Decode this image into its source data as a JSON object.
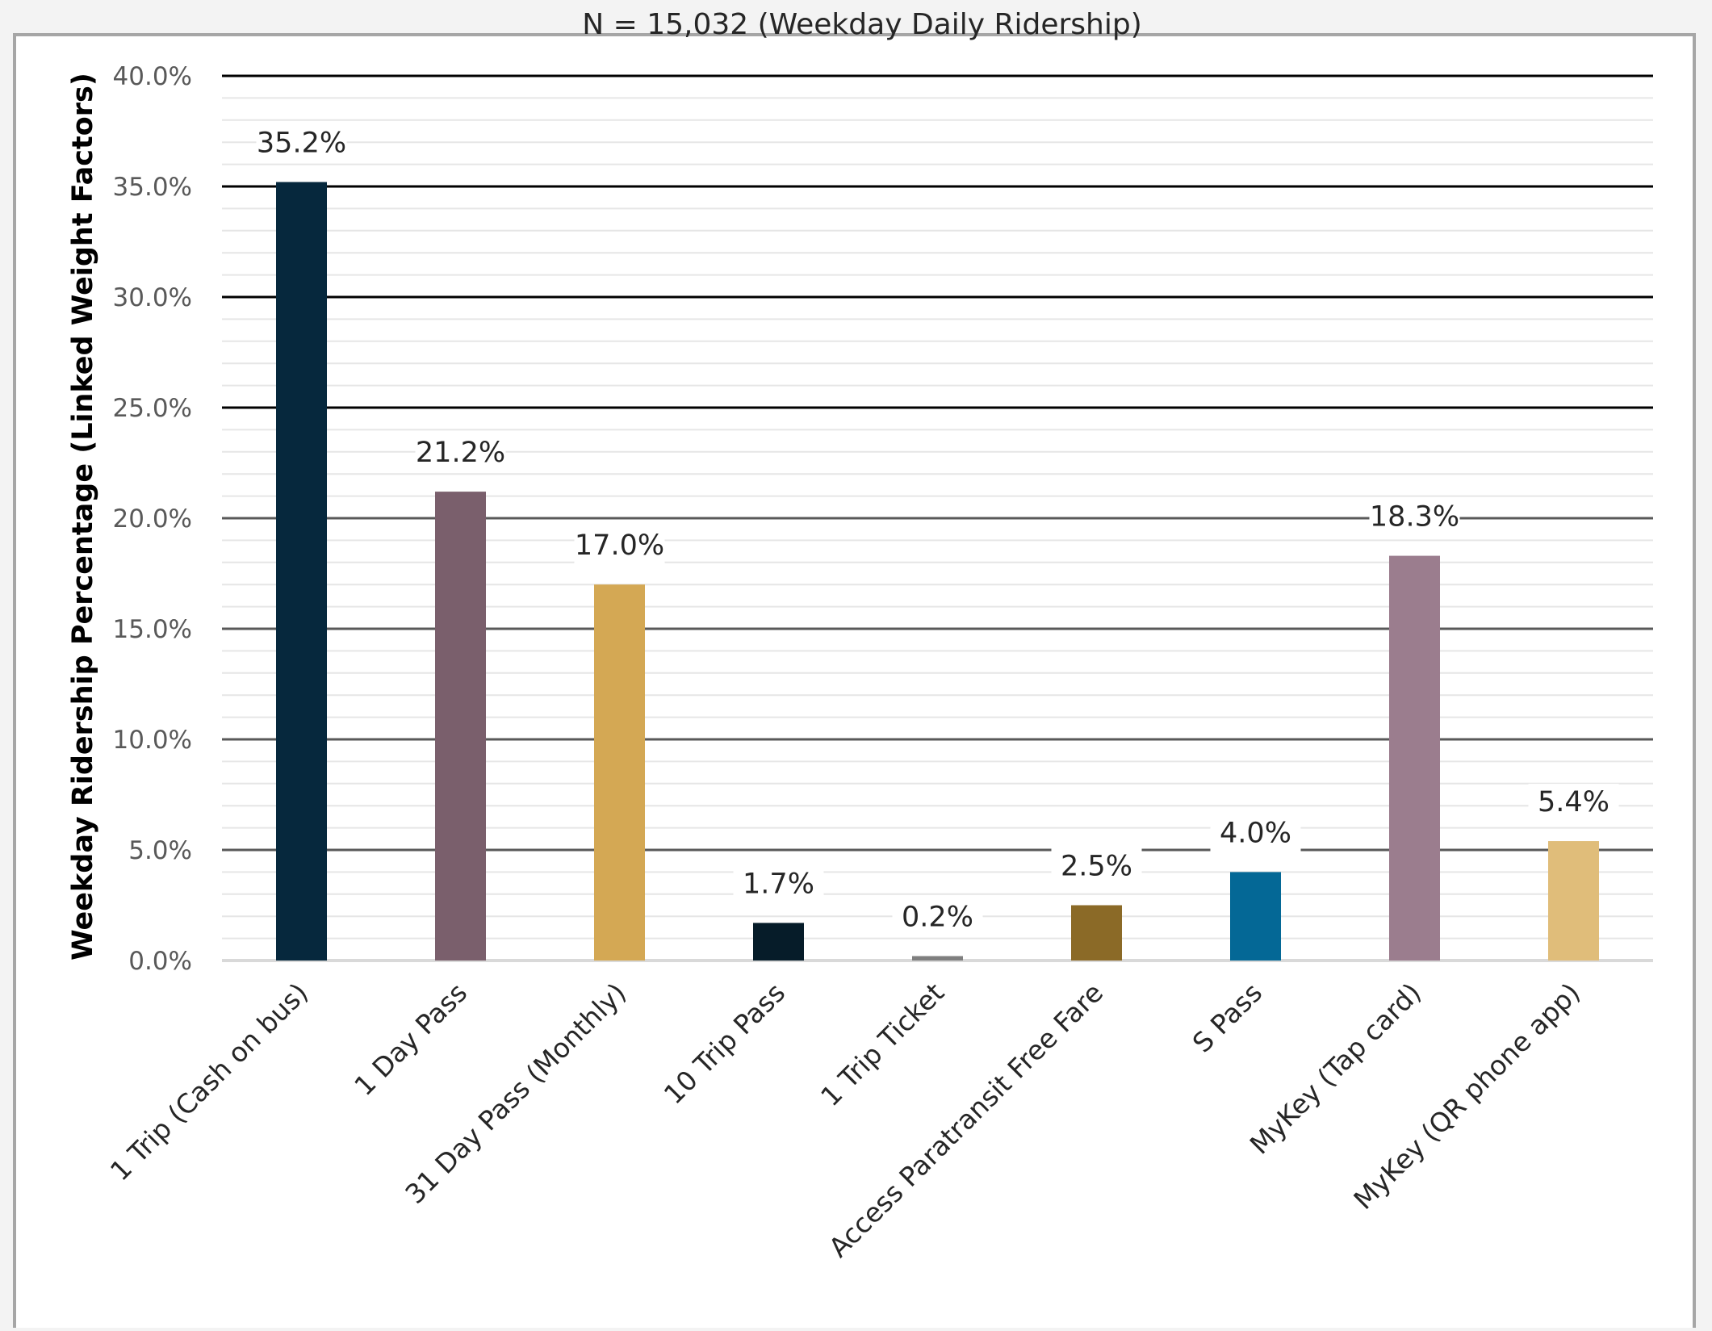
{
  "chart_data": {
    "type": "bar",
    "title": "N = 15,032 (Weekday Daily Ridership)",
    "ylabel": "Weekday Ridership Percentage (Linked Weight Factors)",
    "xlabel": "",
    "ylim": [
      0,
      40
    ],
    "yticks": [
      0,
      5,
      10,
      15,
      20,
      25,
      30,
      35,
      40
    ],
    "ytick_labels": [
      "0.0%",
      "5.0%",
      "10.0%",
      "15.0%",
      "20.0%",
      "25.0%",
      "30.0%",
      "35.0%",
      "40.0%"
    ],
    "grid": true,
    "legend": "none",
    "categories": [
      "1 Trip (Cash on bus)",
      "1 Day Pass",
      "31 Day Pass (Monthly)",
      "10 Trip Pass",
      "1 Trip Ticket",
      "Access Paratransit Free Fare",
      "S Pass",
      "MyKey (Tap card)",
      "MyKey (QR phone app)"
    ],
    "values": [
      35.2,
      21.2,
      17.0,
      1.7,
      0.2,
      2.5,
      4.0,
      18.3,
      5.4
    ],
    "data_labels": [
      "35.2%",
      "21.2%",
      "17.0%",
      "1.7%",
      "0.2%",
      "2.5%",
      "4.0%",
      "18.3%",
      "5.4%"
    ],
    "colors": [
      "#06283d",
      "#7a5f6c",
      "#d4a854",
      "#061c29",
      "#7f7f7f",
      "#8b6a27",
      "#046896",
      "#9b7d8e",
      "#e0bd7a"
    ]
  }
}
